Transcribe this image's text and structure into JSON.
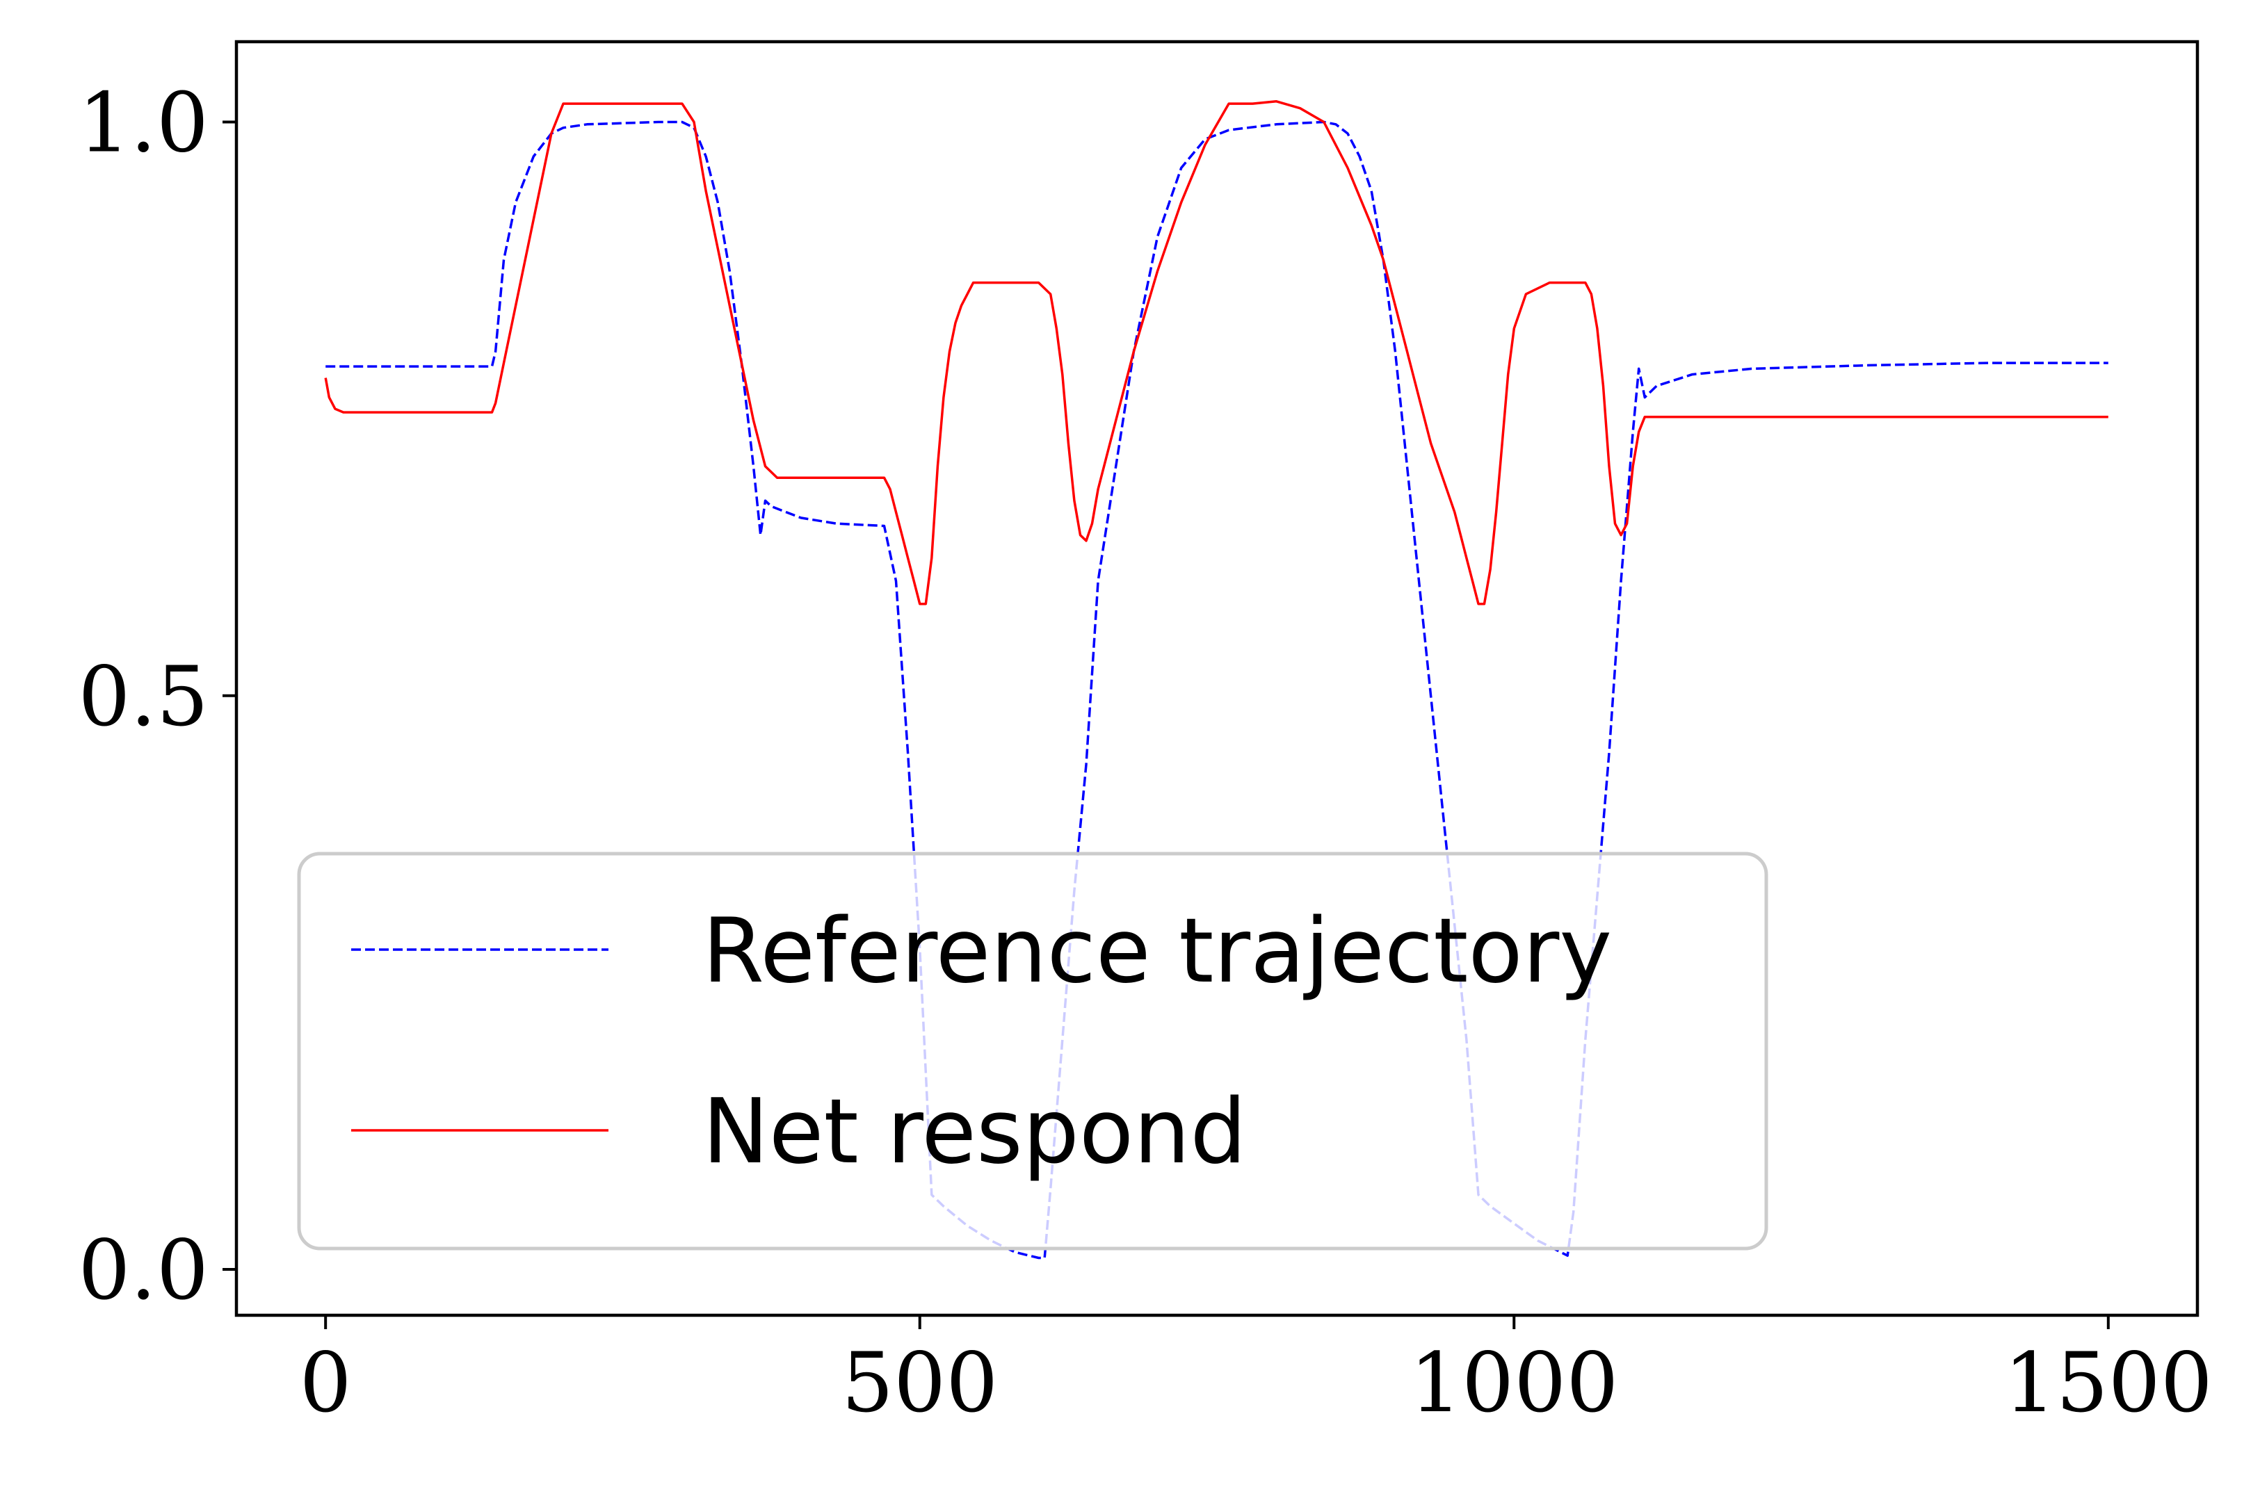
{
  "chart_data": {
    "type": "line",
    "title": "",
    "xlabel": "",
    "ylabel": "",
    "xlim": [
      -75,
      1575
    ],
    "ylim": [
      -0.04,
      1.07
    ],
    "x_ticks": [
      0,
      500,
      1000,
      1500
    ],
    "x_tick_labels": [
      "0",
      "500",
      "1000",
      "1500"
    ],
    "y_ticks": [
      0.0,
      0.5,
      1.0
    ],
    "y_tick_labels": [
      "0.0",
      "0.5",
      "1.0"
    ],
    "grid": false,
    "legend_position": "lower-left",
    "series": [
      {
        "name": "Reference trajectory",
        "color": "#0000ff",
        "style": "dashed",
        "x": [
          0,
          140,
          143,
          150,
          160,
          175,
          190,
          200,
          220,
          250,
          280,
          300,
          310,
          320,
          330,
          340,
          350,
          360,
          366,
          370,
          375,
          400,
          430,
          470,
          480,
          490,
          500,
          510,
          520,
          540,
          560,
          580,
          600,
          605,
          610,
          620,
          630,
          640,
          650,
          680,
          700,
          720,
          740,
          760,
          800,
          840,
          850,
          860,
          870,
          880,
          890,
          900,
          910,
          920,
          940,
          960,
          970,
          980,
          1000,
          1020,
          1045,
          1050,
          1060,
          1080,
          1090,
          1100,
          1105,
          1110,
          1120,
          1150,
          1200,
          1300,
          1400,
          1500
        ],
        "y": [
          0.787,
          0.787,
          0.8,
          0.88,
          0.93,
          0.97,
          0.99,
          0.995,
          0.998,
          0.999,
          1.0,
          1.0,
          0.995,
          0.97,
          0.93,
          0.87,
          0.79,
          0.7,
          0.64,
          0.67,
          0.665,
          0.655,
          0.65,
          0.648,
          0.6,
          0.45,
          0.28,
          0.065,
          0.055,
          0.038,
          0.025,
          0.015,
          0.01,
          0.01,
          0.07,
          0.2,
          0.33,
          0.44,
          0.6,
          0.8,
          0.9,
          0.96,
          0.985,
          0.993,
          0.998,
          1.0,
          0.998,
          0.99,
          0.97,
          0.94,
          0.88,
          0.8,
          0.7,
          0.6,
          0.4,
          0.2,
          0.065,
          0.055,
          0.04,
          0.025,
          0.012,
          0.05,
          0.2,
          0.45,
          0.6,
          0.73,
          0.785,
          0.76,
          0.77,
          0.78,
          0.785,
          0.788,
          0.79,
          0.79
        ]
      },
      {
        "name": "Net respond",
        "color": "#ff0000",
        "style": "solid",
        "x": [
          0,
          3,
          8,
          15,
          30,
          60,
          100,
          140,
          143,
          150,
          160,
          170,
          180,
          190,
          200,
          220,
          250,
          280,
          300,
          310,
          320,
          330,
          340,
          350,
          360,
          370,
          380,
          410,
          440,
          470,
          475,
          480,
          485,
          490,
          495,
          500,
          505,
          510,
          515,
          520,
          525,
          530,
          535,
          540,
          545,
          550,
          560,
          590,
          600,
          610,
          615,
          620,
          625,
          630,
          635,
          640,
          645,
          650,
          660,
          680,
          700,
          720,
          740,
          760,
          780,
          800,
          820,
          840,
          860,
          870,
          880,
          890,
          900,
          910,
          920,
          930,
          940,
          950,
          955,
          960,
          965,
          970,
          975,
          980,
          985,
          990,
          995,
          1000,
          1010,
          1030,
          1050,
          1055,
          1060,
          1065,
          1070,
          1075,
          1080,
          1085,
          1090,
          1095,
          1100,
          1105,
          1110,
          1150,
          1200,
          1300,
          1400,
          1500
        ],
        "y": [
          0.777,
          0.76,
          0.75,
          0.747,
          0.747,
          0.747,
          0.747,
          0.747,
          0.755,
          0.79,
          0.84,
          0.89,
          0.94,
          0.99,
          1.016,
          1.016,
          1.016,
          1.016,
          1.016,
          1.0,
          0.94,
          0.89,
          0.84,
          0.79,
          0.74,
          0.7,
          0.69,
          0.69,
          0.69,
          0.69,
          0.68,
          0.66,
          0.64,
          0.62,
          0.6,
          0.58,
          0.58,
          0.62,
          0.7,
          0.76,
          0.8,
          0.825,
          0.84,
          0.85,
          0.86,
          0.86,
          0.86,
          0.86,
          0.86,
          0.85,
          0.82,
          0.78,
          0.72,
          0.67,
          0.64,
          0.635,
          0.65,
          0.68,
          0.72,
          0.8,
          0.87,
          0.93,
          0.98,
          1.016,
          1.016,
          1.018,
          1.012,
          1.0,
          0.96,
          0.935,
          0.91,
          0.88,
          0.84,
          0.8,
          0.76,
          0.72,
          0.69,
          0.66,
          0.64,
          0.62,
          0.6,
          0.58,
          0.58,
          0.61,
          0.66,
          0.72,
          0.78,
          0.82,
          0.85,
          0.86,
          0.86,
          0.86,
          0.86,
          0.85,
          0.82,
          0.77,
          0.7,
          0.65,
          0.64,
          0.65,
          0.7,
          0.73,
          0.743,
          0.743,
          0.743,
          0.743,
          0.743,
          0.743
        ]
      }
    ]
  }
}
